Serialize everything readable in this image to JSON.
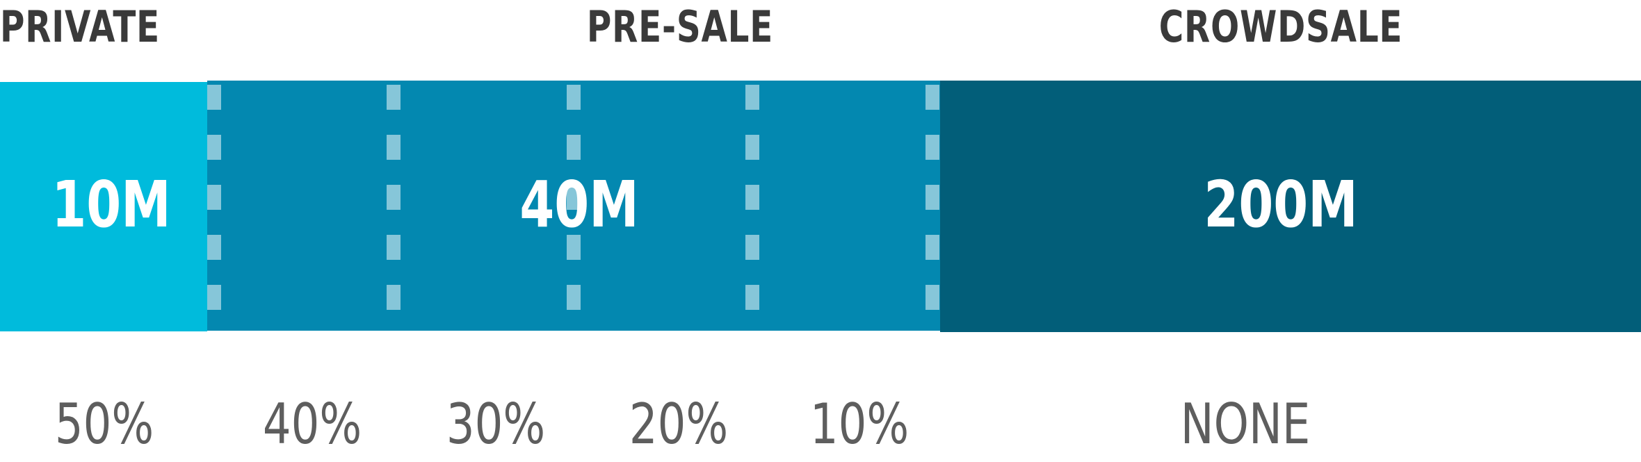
{
  "stages": {
    "private": {
      "label": "PRIVATE",
      "amount": "10M"
    },
    "presale": {
      "label": "PRE-SALE",
      "amount": "40M"
    },
    "crowdsale": {
      "label": "CROWDSALE",
      "amount": "200M"
    }
  },
  "bonuses": [
    "50%",
    "40%",
    "30%",
    "20%",
    "10%",
    "NONE"
  ],
  "colors": {
    "private": "#00bbdc",
    "presale": "#0388b0",
    "crowdsale": "#025e79",
    "heading": "#3a3a3a",
    "bonus_text": "#5e5e5e"
  }
}
